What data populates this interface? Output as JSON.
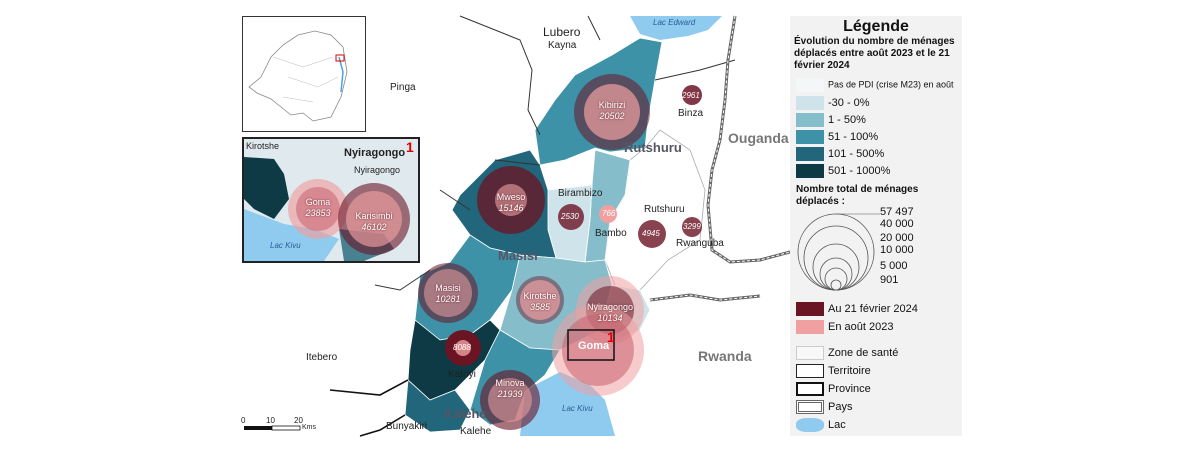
{
  "legend": {
    "title": "Légende",
    "subtitle": "Évolution du nombre de ménages déplacés entre août 2023 et le 21 février 2024",
    "classes": [
      {
        "label": "Pas de PDI (crise M23) en août",
        "color": "#f4f7f8"
      },
      {
        "label": "-30 - 0%",
        "color": "#cfe4ea"
      },
      {
        "label": "1 - 50%",
        "color": "#86bdca"
      },
      {
        "label": "51 - 100%",
        "color": "#3d92a8"
      },
      {
        "label": "101 - 500%",
        "color": "#21667a"
      },
      {
        "label": "501 - 1000%",
        "color": "#0d3a44"
      }
    ],
    "size_title": "Nombre total de ménages déplacés :",
    "size_values": [
      "57 497",
      "40 000",
      "20 000",
      "10 000",
      "5 000",
      "901"
    ],
    "bubble_items": [
      {
        "label": "Au 21 février 2024",
        "color": "#6b1424"
      },
      {
        "label": "En août 2023",
        "color": "#f0a0a0"
      }
    ],
    "boundary_items": [
      "Zone de santé",
      "Territoire",
      "Province",
      "Pays",
      "Lac"
    ]
  },
  "places": {
    "lubero": "Lubero",
    "kayna": "Kayna",
    "pinga": "Pinga",
    "lac_edward": "Lac Edward",
    "binza": "Binza",
    "ouganda": "Ouganda",
    "rutshuru_big": "Rutshuru",
    "rutshuru": "Rutshuru",
    "birambizo": "Birambizo",
    "bambo": "Bambo",
    "rwanguba": "Rwanguba",
    "masisi_big": "Masisi",
    "rwanda": "Rwanda",
    "itebero": "Itebero",
    "katoyi": "Katoyi",
    "kalehe_big": "Kalehe",
    "bunyakiri": "Bunyakiri",
    "kalehe": "Kalehe",
    "lac_kivu": "Lac Kivu",
    "goma_big": "Goma"
  },
  "zones": [
    {
      "name": "Kibirizi",
      "value": "20502"
    },
    {
      "name": "Mweso",
      "value": "15146"
    },
    {
      "name": "Masisi",
      "value": "10281"
    },
    {
      "name": "Kirotshe",
      "value": "3585"
    },
    {
      "name": "Nyiragongo",
      "value": "10134"
    },
    {
      "name": "Minova",
      "value": "21939"
    }
  ],
  "small_values": {
    "binza": "2961",
    "birambizo": "2530",
    "bambo": "766",
    "rutshuru": "4945",
    "rwanguba": "3299",
    "katoyi": "8088"
  },
  "inset": {
    "number": "1",
    "title": "Nyiragongo",
    "kirotshe": "Kirotshe",
    "nyiragongo": "Nyiragongo",
    "lac_kivu": "Lac Kivu",
    "goma_name": "Goma",
    "goma_value": "23853",
    "karisimbi_name": "Karisimbi",
    "karisimbi_value": "46102"
  },
  "focus_marker": "1",
  "scale": {
    "ticks": [
      "0",
      "10",
      "20"
    ],
    "unit": "Kms"
  },
  "colors": {
    "bubble_feb": "#6b1424",
    "bubble_aug": "#f0a0a0",
    "lake": "#8ecbef"
  }
}
